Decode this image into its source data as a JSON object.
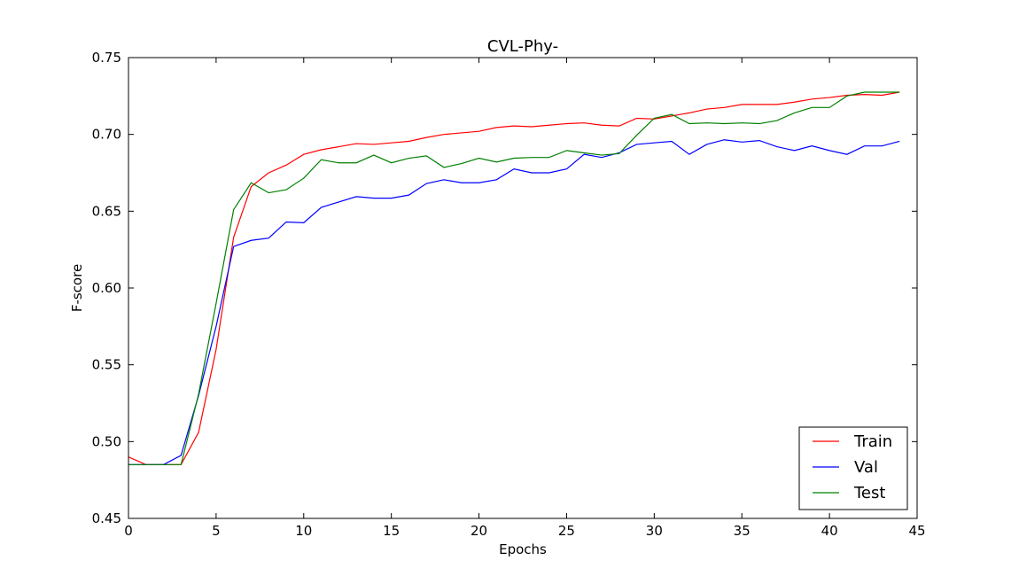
{
  "chart_data": {
    "type": "line",
    "title": "CVL-Phy-",
    "xlabel": "Epochs",
    "ylabel": "F-score",
    "xlim": [
      0,
      45
    ],
    "ylim": [
      0.45,
      0.75
    ],
    "xticks": [
      0,
      5,
      10,
      15,
      20,
      25,
      30,
      35,
      40,
      45
    ],
    "xtick_labels": [
      "0",
      "5",
      "10",
      "15",
      "20",
      "25",
      "30",
      "35",
      "40",
      "45"
    ],
    "yticks": [
      0.45,
      0.5,
      0.55,
      0.6,
      0.65,
      0.7,
      0.75
    ],
    "ytick_labels": [
      "0.45",
      "0.50",
      "0.55",
      "0.60",
      "0.65",
      "0.70",
      "0.75"
    ],
    "grid": false,
    "legend": "lower-right",
    "x": [
      0,
      1,
      2,
      3,
      4,
      5,
      6,
      7,
      8,
      9,
      10,
      11,
      12,
      13,
      14,
      15,
      16,
      17,
      18,
      19,
      20,
      21,
      22,
      23,
      24,
      25,
      26,
      27,
      28,
      29,
      30,
      31,
      32,
      33,
      34,
      35,
      36,
      37,
      38,
      39,
      40,
      41,
      42,
      43,
      44
    ],
    "series": [
      {
        "name": "Train",
        "color": "#ff0000",
        "values": [
          0.49,
          0.485,
          0.485,
          0.485,
          0.506,
          0.56,
          0.633,
          0.666,
          0.675,
          0.68,
          0.687,
          0.69,
          0.692,
          0.694,
          0.6935,
          0.6945,
          0.6955,
          0.698,
          0.7,
          0.701,
          0.702,
          0.7045,
          0.7055,
          0.705,
          0.706,
          0.707,
          0.7075,
          0.706,
          0.7055,
          0.7105,
          0.71,
          0.712,
          0.714,
          0.7165,
          0.7175,
          0.7195,
          0.7195,
          0.7195,
          0.721,
          0.723,
          0.724,
          0.7255,
          0.726,
          0.7255,
          0.7275
        ]
      },
      {
        "name": "Val",
        "color": "#0000ff",
        "values": [
          0.485,
          0.485,
          0.485,
          0.491,
          0.53,
          0.575,
          0.627,
          0.631,
          0.6325,
          0.643,
          0.6425,
          0.6525,
          0.656,
          0.6595,
          0.6585,
          0.6585,
          0.6605,
          0.668,
          0.6705,
          0.6685,
          0.6685,
          0.6705,
          0.6775,
          0.675,
          0.675,
          0.6775,
          0.687,
          0.685,
          0.688,
          0.6935,
          0.6945,
          0.6955,
          0.687,
          0.6935,
          0.6965,
          0.695,
          0.696,
          0.692,
          0.6895,
          0.6925,
          0.6895,
          0.687,
          0.6925,
          0.6925,
          0.6955
        ]
      },
      {
        "name": "Test",
        "color": "#008000",
        "values": [
          0.485,
          0.485,
          0.485,
          0.485,
          0.531,
          0.59,
          0.651,
          0.6685,
          0.662,
          0.664,
          0.6715,
          0.6835,
          0.6815,
          0.6815,
          0.6865,
          0.6815,
          0.6845,
          0.686,
          0.6785,
          0.681,
          0.6845,
          0.682,
          0.6845,
          0.685,
          0.685,
          0.6895,
          0.688,
          0.6865,
          0.6875,
          0.6995,
          0.7105,
          0.713,
          0.707,
          0.7075,
          0.707,
          0.7075,
          0.707,
          0.709,
          0.714,
          0.7175,
          0.7175,
          0.725,
          0.7275,
          0.7275,
          0.7275
        ]
      }
    ]
  }
}
